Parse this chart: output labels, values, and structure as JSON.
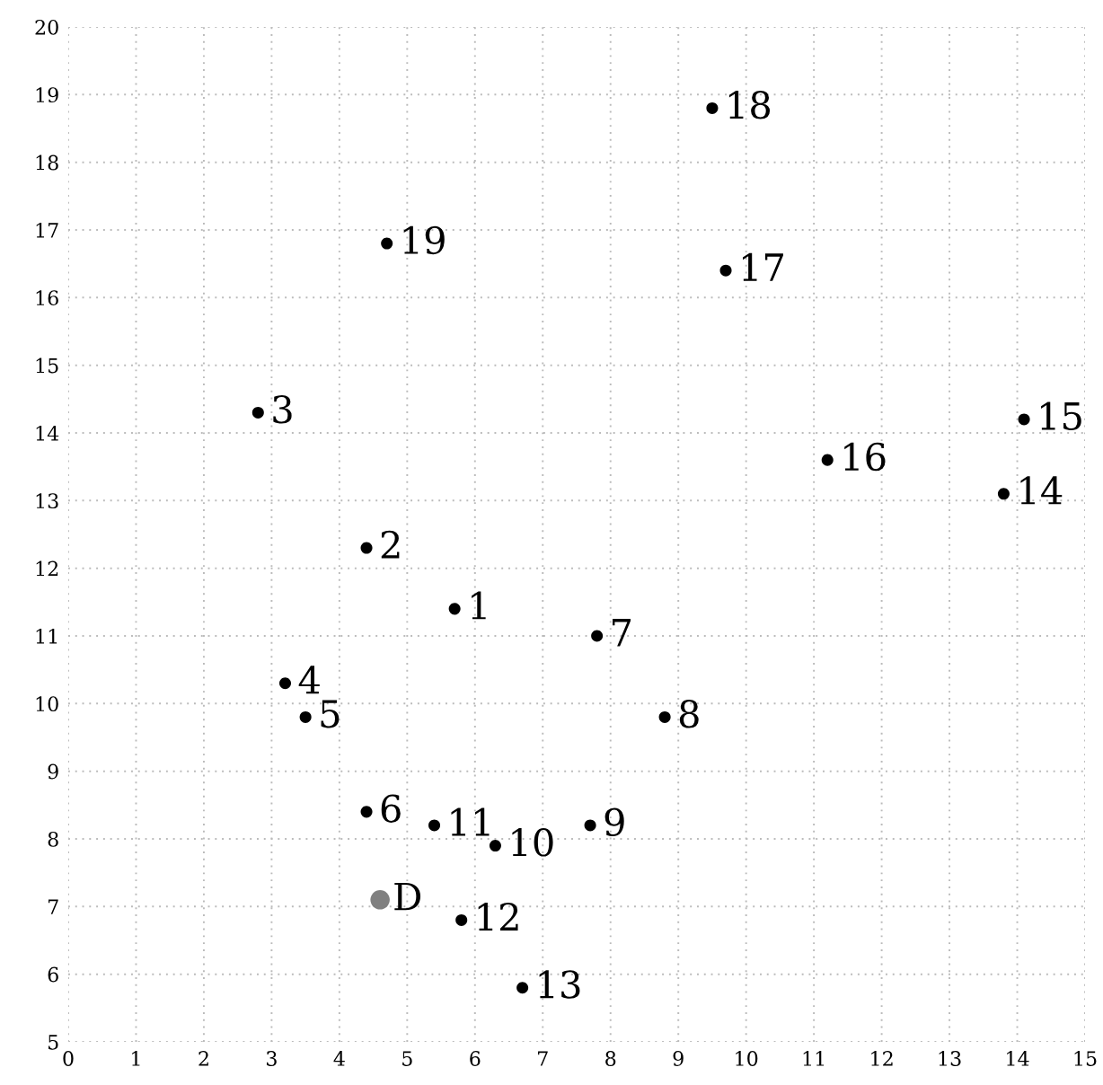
{
  "chart_data": {
    "type": "scatter",
    "xlim": [
      0,
      15
    ],
    "ylim": [
      5,
      20
    ],
    "xticks": [
      0,
      1,
      2,
      3,
      4,
      5,
      6,
      7,
      8,
      9,
      10,
      11,
      12,
      13,
      14,
      15
    ],
    "yticks": [
      5,
      6,
      7,
      8,
      9,
      10,
      11,
      12,
      13,
      14,
      15,
      16,
      17,
      18,
      19,
      20
    ],
    "grid": true,
    "marker": "circle",
    "series": [
      {
        "color": "#000000",
        "x": [
          5.7,
          4.4,
          2.8,
          3.2,
          3.5,
          4.4,
          7.8,
          8.8,
          7.7,
          6.3,
          5.4,
          5.8,
          6.7,
          13.8,
          14.1,
          11.2,
          9.7,
          9.5,
          4.7
        ],
        "values": [
          11.4,
          12.3,
          14.3,
          10.3,
          9.8,
          8.4,
          11.0,
          9.8,
          8.2,
          7.9,
          8.2,
          6.8,
          5.8,
          13.1,
          14.2,
          13.6,
          16.4,
          18.8,
          16.8
        ]
      },
      {
        "color": "#808080",
        "x": [
          4.6
        ],
        "values": [
          7.1
        ]
      }
    ],
    "annotations": [
      {
        "text": "1",
        "x": 5.7,
        "y": 11.4
      },
      {
        "text": "2",
        "x": 4.4,
        "y": 12.3
      },
      {
        "text": "3",
        "x": 2.8,
        "y": 14.3
      },
      {
        "text": "4",
        "x": 3.2,
        "y": 10.3
      },
      {
        "text": "5",
        "x": 3.5,
        "y": 9.8
      },
      {
        "text": "6",
        "x": 4.4,
        "y": 8.4
      },
      {
        "text": "7",
        "x": 7.8,
        "y": 11.0
      },
      {
        "text": "8",
        "x": 8.8,
        "y": 9.8
      },
      {
        "text": "9",
        "x": 7.7,
        "y": 8.2
      },
      {
        "text": "10",
        "x": 6.3,
        "y": 7.9
      },
      {
        "text": "11",
        "x": 5.4,
        "y": 8.2
      },
      {
        "text": "12",
        "x": 5.8,
        "y": 6.8
      },
      {
        "text": "13",
        "x": 6.7,
        "y": 5.8
      },
      {
        "text": "14",
        "x": 13.8,
        "y": 13.1
      },
      {
        "text": "15",
        "x": 14.1,
        "y": 14.2
      },
      {
        "text": "16",
        "x": 11.2,
        "y": 13.6
      },
      {
        "text": "17",
        "x": 9.7,
        "y": 16.4
      },
      {
        "text": "18",
        "x": 9.5,
        "y": 18.8
      },
      {
        "text": "19",
        "x": 4.7,
        "y": 16.8
      },
      {
        "text": "D",
        "x": 4.6,
        "y": 7.1
      }
    ]
  }
}
